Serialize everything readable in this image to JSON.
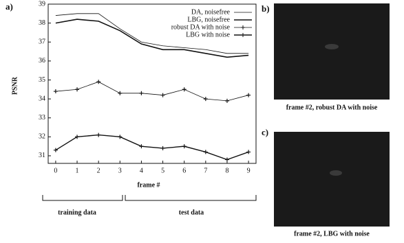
{
  "chart_data": {
    "type": "line",
    "ylabel": "PSNR",
    "xlabel": "frame #",
    "x": [
      0,
      1,
      2,
      3,
      4,
      5,
      6,
      7,
      8,
      9
    ],
    "xlim": [
      -0.35,
      9.35
    ],
    "xticks": [
      0,
      1,
      2,
      3,
      4,
      5,
      6,
      7,
      8,
      9
    ],
    "ylim": [
      30.6,
      39
    ],
    "yticks": [
      31,
      32,
      33,
      34,
      35,
      36,
      37,
      38,
      39
    ],
    "legend": "upper right",
    "series": [
      {
        "name": "DA, noisefree",
        "color": "#111111",
        "marker": "none",
        "values": [
          38.4,
          38.5,
          38.5,
          37.7,
          37.0,
          36.8,
          36.7,
          36.6,
          36.4,
          36.4
        ]
      },
      {
        "name": "LBG, noisefree",
        "color": "#111111",
        "marker": "none",
        "values": [
          38.0,
          38.2,
          38.1,
          37.6,
          36.9,
          36.6,
          36.6,
          36.4,
          36.2,
          36.3
        ]
      },
      {
        "name": "robust DA with noise",
        "color": "#111111",
        "marker": "plus",
        "values": [
          34.4,
          34.5,
          34.9,
          34.3,
          34.3,
          34.2,
          34.5,
          34.0,
          33.9,
          34.2
        ]
      },
      {
        "name": "LBG with noise",
        "color": "#111111",
        "marker": "plus",
        "values": [
          31.3,
          32.0,
          32.1,
          32.0,
          31.5,
          31.4,
          31.5,
          31.2,
          30.8,
          31.2
        ]
      }
    ]
  },
  "panels": {
    "a": "a)",
    "b": "b)",
    "c": "c)"
  },
  "captions": {
    "b": "frame #2, robust DA with noise",
    "c": "frame #2, LBG with noise"
  },
  "brackets": {
    "training": "training data",
    "test": "test data"
  }
}
